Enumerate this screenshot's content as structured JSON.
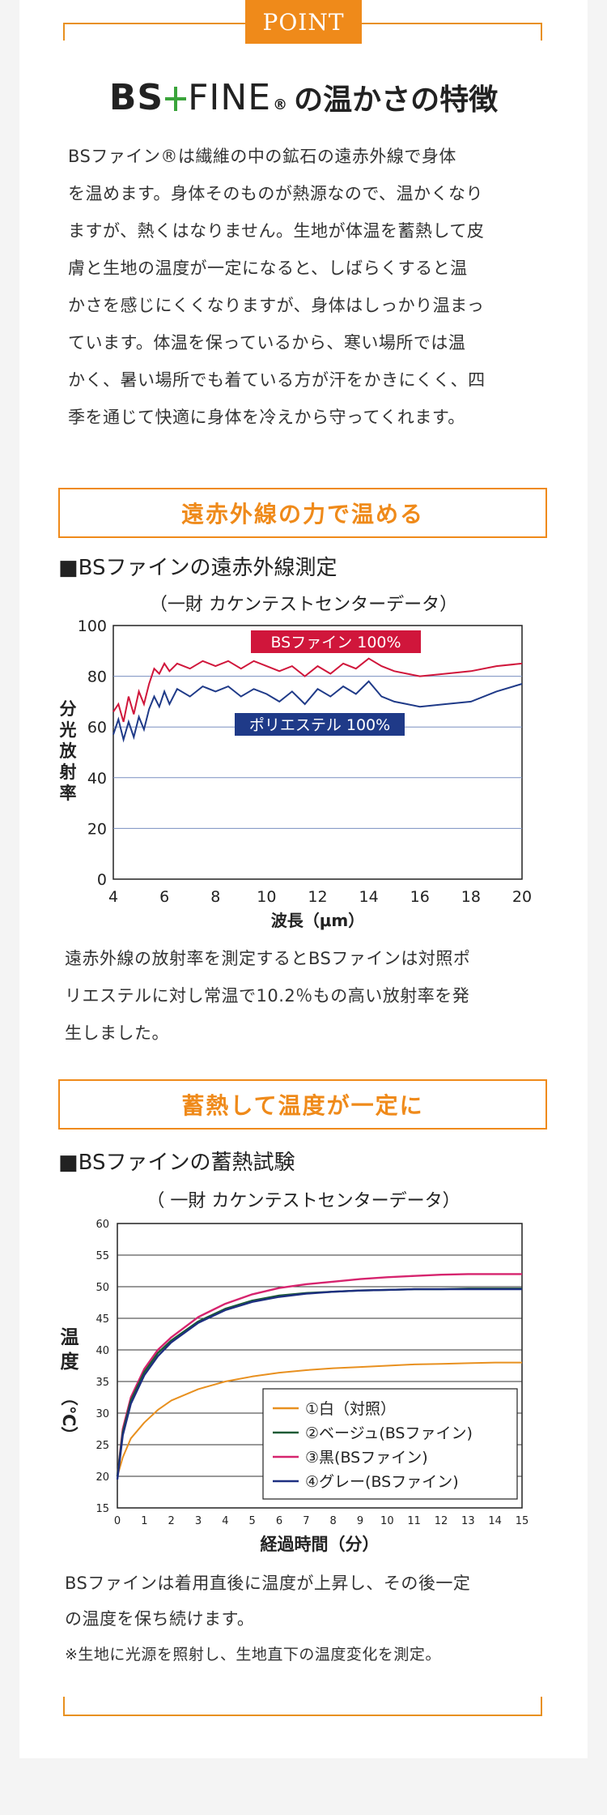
{
  "badge": "POINT",
  "title": {
    "logo_bs": "BS",
    "logo_fine": "FINE",
    "logo_reg": "®",
    "rest": "の温かさの特徴"
  },
  "intro": [
    "BSファイン®は繊維の中の鉱石の遠赤外線で身体",
    "を温めます。身体そのものが熱源なので、温かくなり",
    "ますが、熱くはなりません。生地が体温を蓄熱して皮",
    "膚と生地の温度が一定になると、しばらくすると温",
    "かさを感じにくくなりますが、身体はしっかり温まっ",
    "ています。体温を保っているから、寒い場所では温",
    "かく、暑い場所でも着ている方が汗をかきにくく、四",
    "季を通じて快適に身体を冷えから守ってくれます。"
  ],
  "section1": {
    "heading": "遠赤外線の力で温める",
    "subheading": "■BSファインの遠赤外線測定",
    "source": "（一財 カケンテストセンターデータ）",
    "caption": [
      "遠赤外線の放射率を測定するとBSファインは対照ポ",
      "リエステルに対し常温で10.2％もの高い放射率を発",
      "生しました。"
    ]
  },
  "section2": {
    "heading": "蓄熱して温度が一定に",
    "subheading": "■BSファインの蓄熱試験",
    "source": "（ 一財 カケンテストセンターデータ）",
    "caption": [
      "BSファインは着用直後に温度が上昇し、その後一定",
      "の温度を保ち続けます。",
      "※生地に光源を照射し、生地直下の温度変化を測定。"
    ]
  },
  "colors": {
    "accent": "#ef8a1a",
    "bsfine": "#d0163b",
    "polyester": "#1f3a88",
    "white_line": "#e8901f",
    "beige_line": "#1a5a35",
    "black_line": "#d6246e",
    "gray_line": "#1d2f80"
  },
  "chart_data": [
    {
      "type": "line",
      "title": "BSファインの遠赤外線測定",
      "xlabel": "波長（μm）",
      "ylabel": "分光放射率",
      "xlim": [
        4,
        20
      ],
      "ylim": [
        0,
        100
      ],
      "xticks": [
        4,
        6,
        8,
        10,
        12,
        14,
        16,
        18,
        20
      ],
      "yticks": [
        0,
        20,
        40,
        60,
        80,
        100
      ],
      "grid": "horizontal",
      "series": [
        {
          "name": "BSファイン 100%",
          "x": [
            4,
            4.2,
            4.4,
            4.6,
            4.8,
            5.0,
            5.2,
            5.4,
            5.6,
            5.8,
            6.0,
            6.2,
            6.5,
            7,
            7.5,
            8,
            8.5,
            9,
            9.5,
            10,
            10.5,
            11,
            11.5,
            12,
            12.5,
            13,
            13.5,
            14,
            14.5,
            15,
            15.5,
            16,
            17,
            18,
            19,
            20
          ],
          "values": [
            66,
            69,
            62,
            72,
            65,
            74,
            69,
            77,
            83,
            81,
            85,
            82,
            85,
            83,
            86,
            84,
            86,
            83,
            86,
            84,
            82,
            84,
            80,
            84,
            81,
            85,
            83,
            87,
            84,
            82,
            81,
            80,
            81,
            82,
            84,
            85
          ]
        },
        {
          "name": "ポリエステル 100%",
          "x": [
            4,
            4.2,
            4.4,
            4.6,
            4.8,
            5.0,
            5.2,
            5.4,
            5.6,
            5.8,
            6.0,
            6.2,
            6.5,
            7,
            7.5,
            8,
            8.5,
            9,
            9.5,
            10,
            10.5,
            11,
            11.5,
            12,
            12.5,
            13,
            13.5,
            14,
            14.5,
            15,
            15.5,
            16,
            17,
            18,
            19,
            20
          ],
          "values": [
            57,
            63,
            55,
            62,
            56,
            64,
            59,
            67,
            72,
            68,
            74,
            69,
            75,
            72,
            76,
            74,
            76,
            72,
            75,
            73,
            70,
            74,
            69,
            75,
            72,
            76,
            73,
            78,
            72,
            70,
            69,
            68,
            69,
            70,
            74,
            77
          ]
        }
      ]
    },
    {
      "type": "line",
      "title": "BSファインの蓄熱試験",
      "xlabel": "経過時間（分）",
      "ylabel": "温度（℃）",
      "xlim": [
        0,
        15
      ],
      "ylim": [
        15,
        60
      ],
      "xticks": [
        0,
        1,
        2,
        3,
        4,
        5,
        6,
        7,
        8,
        9,
        10,
        11,
        12,
        13,
        14,
        15
      ],
      "yticks": [
        15,
        20,
        25,
        30,
        35,
        40,
        45,
        50,
        55,
        60
      ],
      "grid": "horizontal",
      "series": [
        {
          "name": "①白（対照）",
          "x": [
            0,
            0.2,
            0.5,
            1,
            1.5,
            2,
            3,
            4,
            5,
            6,
            7,
            8,
            9,
            10,
            11,
            12,
            13,
            14,
            15
          ],
          "values": [
            20,
            23,
            26,
            28.5,
            30.5,
            32,
            33.8,
            35,
            35.8,
            36.4,
            36.8,
            37.1,
            37.3,
            37.5,
            37.7,
            37.8,
            37.9,
            38,
            38
          ]
        },
        {
          "name": "②ベージュ(BSファイン)",
          "x": [
            0,
            0.2,
            0.5,
            1,
            1.5,
            2,
            3,
            4,
            5,
            6,
            7,
            8,
            9,
            10,
            11,
            12,
            13,
            14,
            15
          ],
          "values": [
            20,
            27,
            32,
            36.5,
            39.5,
            41.5,
            44.5,
            46.5,
            47.8,
            48.6,
            49,
            49.2,
            49.4,
            49.5,
            49.6,
            49.6,
            49.7,
            49.7,
            49.7
          ]
        },
        {
          "name": "③黒(BSファイン)",
          "x": [
            0,
            0.2,
            0.5,
            1,
            1.5,
            2,
            3,
            4,
            5,
            6,
            7,
            8,
            9,
            10,
            11,
            12,
            13,
            14,
            15
          ],
          "values": [
            20,
            27.5,
            32.5,
            37,
            40,
            42,
            45.2,
            47.3,
            48.8,
            49.8,
            50.4,
            50.8,
            51.2,
            51.5,
            51.7,
            51.9,
            52,
            52,
            52
          ]
        },
        {
          "name": "④グレー(BSファイン)",
          "x": [
            0,
            0.2,
            0.5,
            1,
            1.5,
            2,
            3,
            4,
            5,
            6,
            7,
            8,
            9,
            10,
            11,
            12,
            13,
            14,
            15
          ],
          "values": [
            19.5,
            26.5,
            31.5,
            36,
            39,
            41.2,
            44.3,
            46.3,
            47.6,
            48.4,
            48.9,
            49.2,
            49.4,
            49.5,
            49.6,
            49.6,
            49.6,
            49.6,
            49.6
          ]
        }
      ]
    }
  ]
}
